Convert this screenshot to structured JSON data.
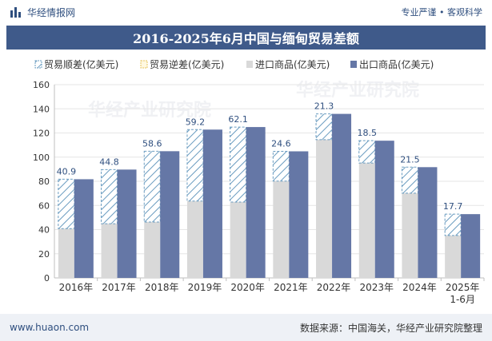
{
  "header": {
    "brand": "华经情报网",
    "slogan": "专业严谨 • 客观科学"
  },
  "footer": {
    "url": "www.huaon.com",
    "source": "数据来源：中国海关，华经产业研究院整理"
  },
  "watermark": "华经产业研究院",
  "colors": {
    "surplus_stroke": "#6a9cc0",
    "import": "#d9d9d9",
    "export": "#6577a6",
    "title_bg": "#3f5a8a"
  },
  "chart_data": {
    "type": "bar",
    "title": "2016-2025年6月中国与缅甸贸易差额",
    "categories": [
      "2016年",
      "2017年",
      "2018年",
      "2019年",
      "2020年",
      "2021年",
      "2022年",
      "2023年",
      "2024年",
      "2025年1-6月"
    ],
    "series": [
      {
        "name": "贸易顺差(亿美元)",
        "values": [
          40.9,
          44.8,
          58.6,
          59.2,
          62.1,
          24.6,
          21.3,
          18.5,
          21.5,
          17.7
        ]
      },
      {
        "name": "贸易逆差(亿美元)",
        "values": [
          0,
          0,
          0,
          0,
          0,
          0,
          0,
          0,
          0,
          0
        ]
      },
      {
        "name": "进口商品(亿美元)",
        "values": [
          40.8,
          44.9,
          46.3,
          63.6,
          62.8,
          80.2,
          114.5,
          95.1,
          70.2,
          35.1
        ]
      },
      {
        "name": "出口商品(亿美元)",
        "values": [
          81.7,
          89.7,
          104.9,
          122.8,
          124.9,
          104.8,
          135.8,
          113.6,
          91.7,
          52.8
        ]
      }
    ],
    "data_labels": [
      "40.9",
      "44.8",
      "58.6",
      "59.2",
      "62.1",
      "24.6",
      "21.3",
      "18.5",
      "21.5",
      "17.7"
    ],
    "ylim": [
      0,
      160
    ],
    "yticks": [
      0,
      20,
      40,
      60,
      80,
      100,
      120,
      140,
      160
    ],
    "xlabel": "",
    "ylabel": "",
    "legend_position": "top"
  }
}
